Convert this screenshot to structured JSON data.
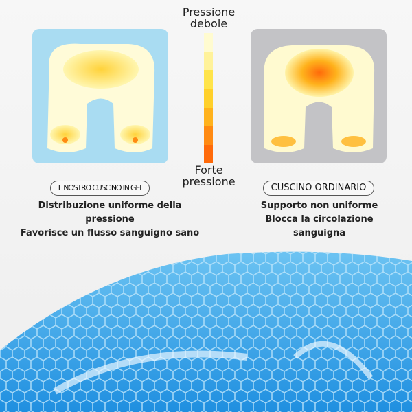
{
  "scale": {
    "top_label": "Pressione debole",
    "bottom_label": "Forte pressione",
    "colors": [
      "#fffbd0",
      "#fff29a",
      "#ffe44a",
      "#ffd02a",
      "#ffb21c",
      "#ff8a12",
      "#ff6a0a"
    ]
  },
  "left": {
    "badge": "IL NOSTRO CUSCINO IN GEL",
    "lines": [
      "Distribuzione uniforme della",
      "pressione",
      "Favorisce un flusso sanguigno sano"
    ],
    "bg_color": "#a9dcf2"
  },
  "right": {
    "badge": "CUSCINO ORDINARIO",
    "lines": [
      "Supporto non uniforme",
      "Blocca la circolazione",
      "sanguigna"
    ],
    "bg_color": "#c3c3c6"
  },
  "gel_color": "#3aa6e8"
}
